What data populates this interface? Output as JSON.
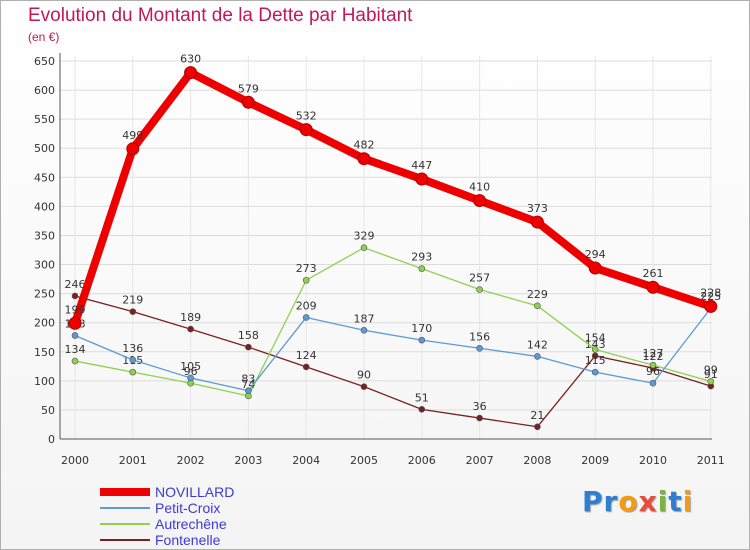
{
  "title": "Evolution du Montant de la Dette par Habitant",
  "subtitle": "(en €)",
  "logo": {
    "letters": [
      "P",
      "r",
      "o",
      "x",
      "i",
      "t",
      "i"
    ],
    "colors": [
      "#2e7fd0",
      "#2e7fd0",
      "#f39c12",
      "#e74c3c",
      "#7cb342",
      "#2e7fd0",
      "#f39c12"
    ]
  },
  "chart_data": {
    "type": "line",
    "x": [
      "2000",
      "2001",
      "2002",
      "2003",
      "2004",
      "2005",
      "2006",
      "2007",
      "2008",
      "2009",
      "2010",
      "2011"
    ],
    "ylim": [
      0,
      650
    ],
    "yticks": [
      0,
      50,
      100,
      150,
      200,
      250,
      300,
      350,
      400,
      450,
      500,
      550,
      600,
      650
    ],
    "grid": true,
    "legend": "bottom-left",
    "series": [
      {
        "name": "NOVILLARD",
        "color": "#ee0000",
        "values": [
          199,
          499,
          630,
          579,
          532,
          482,
          447,
          410,
          373,
          294,
          261,
          228
        ]
      },
      {
        "name": "Petit-Croix",
        "color": "#5b9bd5",
        "values": [
          178,
          136,
          105,
          83,
          209,
          187,
          170,
          156,
          142,
          115,
          96,
          225
        ]
      },
      {
        "name": "Autrechêne",
        "color": "#8fd14f",
        "values": [
          134,
          115,
          96,
          74,
          273,
          329,
          293,
          257,
          229,
          154,
          127,
          99
        ]
      },
      {
        "name": "Fontenelle",
        "color": "#7b2020",
        "values": [
          246,
          219,
          189,
          158,
          124,
          90,
          51,
          36,
          21,
          143,
          122,
          91
        ]
      }
    ]
  }
}
